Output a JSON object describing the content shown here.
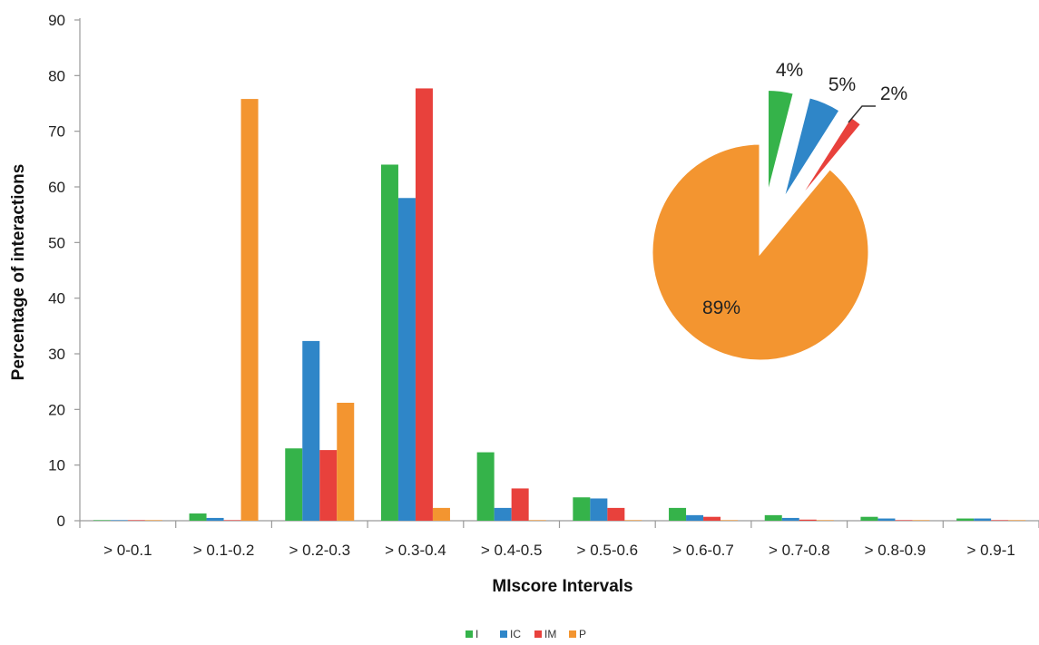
{
  "chart_data": [
    {
      "type": "bar",
      "xlabel": "MIscore Intervals",
      "ylabel": "Percentage of interactions",
      "ylim": [
        0,
        90
      ],
      "yticks": [
        0,
        10,
        20,
        30,
        40,
        50,
        60,
        70,
        80,
        90
      ],
      "grid": false,
      "legend_position": "bottom-center",
      "categories": [
        "> 0-0.1",
        "> 0.1-0.2",
        "> 0.2-0.3",
        "> 0.3-0.4",
        "> 0.4-0.5",
        "> 0.5-0.6",
        "> 0.6-0.7",
        "> 0.7-0.8",
        "> 0.8-0.9",
        "> 0.9-1"
      ],
      "series": [
        {
          "name": "I",
          "color": "#35b34a",
          "values": [
            0.1,
            1.3,
            13.0,
            64.0,
            12.3,
            4.2,
            2.3,
            1.0,
            0.7,
            0.4
          ]
        },
        {
          "name": "IC",
          "color": "#2f86c8",
          "values": [
            0.1,
            0.5,
            32.3,
            58.0,
            2.3,
            4.0,
            1.0,
            0.5,
            0.4,
            0.4
          ]
        },
        {
          "name": "IM",
          "color": "#e8413c",
          "values": [
            0.1,
            0.1,
            12.7,
            77.7,
            5.8,
            2.3,
            0.7,
            0.2,
            0.1,
            0.1
          ]
        },
        {
          "name": "P",
          "color": "#f39530",
          "values": [
            0.1,
            75.8,
            21.2,
            2.3,
            0.1,
            0.1,
            0.1,
            0.1,
            0.1,
            0.1
          ]
        }
      ]
    },
    {
      "type": "pie",
      "slices": [
        {
          "label": "4%",
          "value": 4,
          "color": "#35b34a",
          "exploded": true
        },
        {
          "label": "5%",
          "value": 5,
          "color": "#2f86c8",
          "exploded": true
        },
        {
          "label": "2%",
          "value": 2,
          "color": "#e8413c",
          "exploded": true
        },
        {
          "label": "89%",
          "value": 89,
          "color": "#f39530",
          "exploded": false
        }
      ]
    }
  ]
}
